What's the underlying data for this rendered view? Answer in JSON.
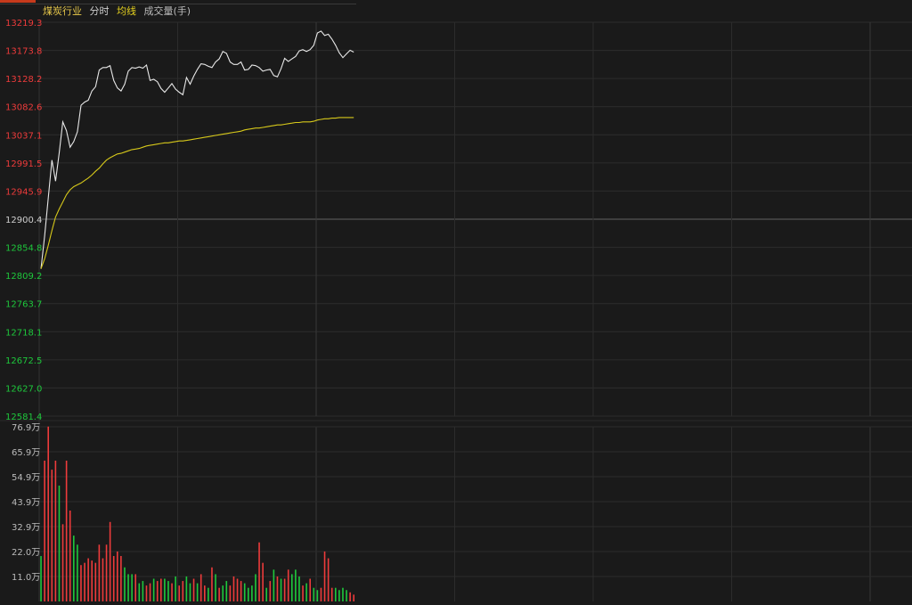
{
  "header": {
    "title": "煤炭行业",
    "mode": "分时",
    "avg_label": "均线",
    "vol_label": "成交量(手)"
  },
  "colors": {
    "up": "#ee3b3b",
    "down": "#1ec83c",
    "price_line": "#e8e8e8",
    "avg_line": "#d6c81a",
    "title": "#e6c74a",
    "mode": "#cfcfcf",
    "avg_label": "#e6d21f",
    "vol_label": "#bbbbbb",
    "grid": "#2c2c2c",
    "prev_close_line": "#555555",
    "neutral": "#cfcfcf"
  },
  "chart_data": [
    {
      "type": "line",
      "panel": "price",
      "prev_close": 12900.4,
      "ylim": [
        12581.4,
        13219.3
      ],
      "y_ticks": [
        "13219.3",
        "13173.8",
        "13128.2",
        "13082.6",
        "13037.1",
        "12991.5",
        "12945.9",
        "12900.4",
        "12854.8",
        "12809.2",
        "12763.7",
        "12718.1",
        "12672.5",
        "12627.0",
        "12581.4"
      ],
      "minutes_total": 240,
      "grid": true,
      "series": [
        {
          "role": "price",
          "values": [
            12820,
            12873,
            12935,
            12996,
            12962,
            13008,
            13058,
            13044,
            13017,
            13026,
            13042,
            13085,
            13090,
            13093,
            13108,
            13115,
            13142,
            13146,
            13146,
            13149,
            13125,
            13113,
            13108,
            13119,
            13140,
            13146,
            13145,
            13147,
            13145,
            13150,
            13125,
            13127,
            13123,
            13112,
            13106,
            13113,
            13120,
            13111,
            13106,
            13102,
            13130,
            13119,
            13132,
            13143,
            13152,
            13151,
            13148,
            13146,
            13155,
            13160,
            13172,
            13169,
            13155,
            13151,
            13151,
            13155,
            13142,
            13143,
            13150,
            13149,
            13146,
            13140,
            13142,
            13143,
            13133,
            13131,
            13144,
            13161,
            13156,
            13160,
            13164,
            13173,
            13175,
            13172,
            13175,
            13182,
            13202,
            13205,
            13198,
            13200,
            13192,
            13182,
            13170,
            13162,
            13168,
            13174,
            13171
          ]
        },
        {
          "role": "average",
          "values": [
            12820,
            12836,
            12858,
            12882,
            12904,
            12917,
            12928,
            12940,
            12948,
            12953,
            12956,
            12959,
            12963,
            12967,
            12972,
            12978,
            12983,
            12990,
            12996,
            13000,
            13003,
            13006,
            13007,
            13009,
            13011,
            13013,
            13014,
            13015,
            13017,
            13019,
            13020,
            13021,
            13022,
            13023,
            13024,
            13024,
            13025,
            13026,
            13027,
            13027,
            13028,
            13029,
            13030,
            13031,
            13032,
            13033,
            13034,
            13035,
            13036,
            13037,
            13038,
            13039,
            13040,
            13041,
            13042,
            13043,
            13045,
            13046,
            13047,
            13048,
            13048,
            13049,
            13050,
            13051,
            13052,
            13053,
            13053,
            13054,
            13055,
            13056,
            13057,
            13057,
            13058,
            13058,
            13058,
            13059,
            13061,
            13062,
            13063,
            13063,
            13064,
            13064,
            13065,
            13065,
            13065,
            13065,
            13065
          ]
        }
      ]
    },
    {
      "type": "bar",
      "panel": "volume",
      "ylim": [
        0,
        76.9
      ],
      "y_ticks": [
        "76.9万",
        "65.9万",
        "54.9万",
        "43.9万",
        "32.9万",
        "22.0万",
        "11.0万"
      ],
      "values": [
        20,
        62,
        77,
        58,
        62,
        51,
        34,
        62,
        40,
        29,
        25,
        16,
        17,
        19,
        18,
        17,
        25,
        19,
        25,
        35,
        20,
        22,
        20,
        15,
        12,
        12,
        12,
        8,
        9,
        7,
        8,
        10,
        9,
        10,
        10,
        9,
        8,
        11,
        7,
        9,
        11,
        8,
        10,
        8,
        12,
        7,
        6,
        15,
        12,
        6,
        7,
        9,
        7,
        11,
        10,
        9,
        8,
        6,
        7,
        12,
        26,
        17,
        6,
        9,
        14,
        11,
        10,
        10,
        14,
        12,
        14,
        11,
        7,
        8,
        10,
        6,
        5,
        6,
        22,
        19,
        6,
        6,
        5,
        6,
        5,
        4,
        3
      ],
      "directions": [
        "down",
        "up",
        "up",
        "up",
        "up",
        "down",
        "up",
        "up",
        "up",
        "down",
        "down",
        "up",
        "up",
        "up",
        "up",
        "up",
        "up",
        "up",
        "up",
        "up",
        "up",
        "up",
        "up",
        "down",
        "down",
        "down",
        "up",
        "down",
        "down",
        "up",
        "up",
        "down",
        "up",
        "up",
        "down",
        "down",
        "up",
        "down",
        "up",
        "up",
        "down",
        "down",
        "up",
        "down",
        "up",
        "up",
        "down",
        "up",
        "down",
        "up",
        "down",
        "down",
        "up",
        "up",
        "up",
        "up",
        "down",
        "down",
        "down",
        "down",
        "up",
        "up",
        "down",
        "up",
        "down",
        "up",
        "down",
        "up",
        "up",
        "down",
        "down",
        "down",
        "up",
        "down",
        "up",
        "down",
        "down",
        "up",
        "up",
        "up",
        "up",
        "down",
        "down",
        "down",
        "down",
        "up",
        "up"
      ]
    }
  ]
}
